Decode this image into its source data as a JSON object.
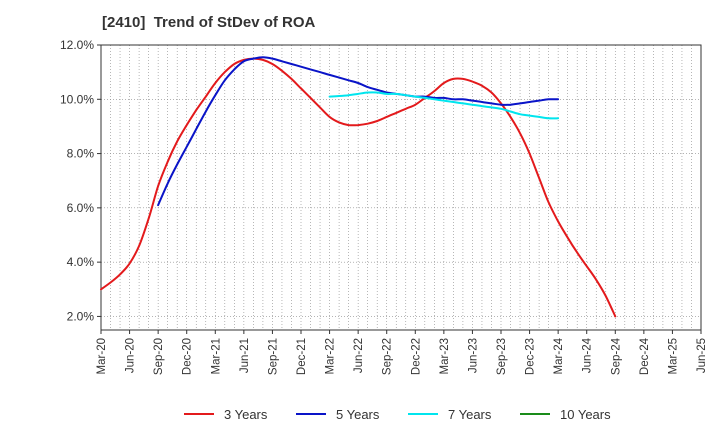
{
  "chart_data": {
    "type": "line",
    "title": "[2410]  Trend of StDev of ROA",
    "xlabel": "",
    "ylabel": "",
    "ylim": [
      1.5,
      12.0
    ],
    "y_ticks": [
      "2.0%",
      "4.0%",
      "6.0%",
      "8.0%",
      "10.0%",
      "12.0%"
    ],
    "y_tick_values": [
      2,
      4,
      6,
      8,
      10,
      12
    ],
    "x_ticks": [
      "Mar-20",
      "Jun-20",
      "Sep-20",
      "Dec-20",
      "Mar-21",
      "Jun-21",
      "Sep-21",
      "Dec-21",
      "Mar-22",
      "Jun-22",
      "Sep-22",
      "Dec-22",
      "Mar-23",
      "Jun-23",
      "Sep-23",
      "Dec-23",
      "Mar-24",
      "Jun-24",
      "Sep-24",
      "Dec-24",
      "Mar-25",
      "Jun-25"
    ],
    "grid": true,
    "legend_position": "bottom",
    "series": [
      {
        "name": "3 Years",
        "color": "#e31a1c",
        "points": [
          [
            "Mar-20",
            3.0
          ],
          [
            "Apr-20",
            3.25
          ],
          [
            "May-20",
            3.55
          ],
          [
            "Jun-20",
            3.95
          ],
          [
            "Jul-20",
            4.6
          ],
          [
            "Aug-20",
            5.6
          ],
          [
            "Sep-20",
            6.8
          ],
          [
            "Oct-20",
            7.7
          ],
          [
            "Nov-20",
            8.45
          ],
          [
            "Dec-20",
            9.05
          ],
          [
            "Jan-21",
            9.6
          ],
          [
            "Feb-21",
            10.1
          ],
          [
            "Mar-21",
            10.6
          ],
          [
            "Apr-21",
            11.0
          ],
          [
            "May-21",
            11.3
          ],
          [
            "Jun-21",
            11.45
          ],
          [
            "Jul-21",
            11.5
          ],
          [
            "Aug-21",
            11.45
          ],
          [
            "Sep-21",
            11.3
          ],
          [
            "Oct-21",
            11.05
          ],
          [
            "Nov-21",
            10.75
          ],
          [
            "Dec-21",
            10.4
          ],
          [
            "Jan-22",
            10.05
          ],
          [
            "Feb-22",
            9.7
          ],
          [
            "Mar-22",
            9.35
          ],
          [
            "Apr-22",
            9.15
          ],
          [
            "May-22",
            9.05
          ],
          [
            "Jun-22",
            9.05
          ],
          [
            "Jul-22",
            9.1
          ],
          [
            "Aug-22",
            9.2
          ],
          [
            "Sep-22",
            9.35
          ],
          [
            "Oct-22",
            9.5
          ],
          [
            "Nov-22",
            9.65
          ],
          [
            "Dec-22",
            9.8
          ],
          [
            "Jan-23",
            10.05
          ],
          [
            "Feb-23",
            10.3
          ],
          [
            "Mar-23",
            10.6
          ],
          [
            "Apr-23",
            10.75
          ],
          [
            "May-23",
            10.75
          ],
          [
            "Jun-23",
            10.65
          ],
          [
            "Jul-23",
            10.5
          ],
          [
            "Aug-23",
            10.25
          ],
          [
            "Sep-23",
            9.85
          ],
          [
            "Oct-23",
            9.35
          ],
          [
            "Nov-23",
            8.75
          ],
          [
            "Dec-23",
            8.0
          ],
          [
            "Jan-24",
            7.1
          ],
          [
            "Feb-24",
            6.2
          ],
          [
            "Mar-24",
            5.5
          ],
          [
            "Apr-24",
            4.9
          ],
          [
            "May-24",
            4.35
          ],
          [
            "Jun-24",
            3.85
          ],
          [
            "Jul-24",
            3.35
          ],
          [
            "Aug-24",
            2.75
          ],
          [
            "Sep-24",
            2.0
          ]
        ]
      },
      {
        "name": "5 Years",
        "color": "#0a14c8",
        "points": [
          [
            "Sep-20",
            6.1
          ],
          [
            "Oct-20",
            6.9
          ],
          [
            "Nov-20",
            7.6
          ],
          [
            "Dec-20",
            8.25
          ],
          [
            "Jan-21",
            8.9
          ],
          [
            "Feb-21",
            9.55
          ],
          [
            "Mar-21",
            10.15
          ],
          [
            "Apr-21",
            10.7
          ],
          [
            "May-21",
            11.1
          ],
          [
            "Jun-21",
            11.4
          ],
          [
            "Jul-21",
            11.5
          ],
          [
            "Aug-21",
            11.55
          ],
          [
            "Sep-21",
            11.5
          ],
          [
            "Oct-21",
            11.4
          ],
          [
            "Nov-21",
            11.3
          ],
          [
            "Dec-21",
            11.2
          ],
          [
            "Jan-22",
            11.1
          ],
          [
            "Feb-22",
            11.0
          ],
          [
            "Mar-22",
            10.9
          ],
          [
            "Apr-22",
            10.8
          ],
          [
            "May-22",
            10.7
          ],
          [
            "Jun-22",
            10.6
          ],
          [
            "Jul-22",
            10.45
          ],
          [
            "Aug-22",
            10.35
          ],
          [
            "Sep-22",
            10.25
          ],
          [
            "Oct-22",
            10.2
          ],
          [
            "Nov-22",
            10.15
          ],
          [
            "Dec-22",
            10.1
          ],
          [
            "Jan-23",
            10.1
          ],
          [
            "Feb-23",
            10.05
          ],
          [
            "Mar-23",
            10.05
          ],
          [
            "Apr-23",
            10.0
          ],
          [
            "May-23",
            10.0
          ],
          [
            "Jun-23",
            9.95
          ],
          [
            "Jul-23",
            9.9
          ],
          [
            "Aug-23",
            9.85
          ],
          [
            "Sep-23",
            9.8
          ],
          [
            "Oct-23",
            9.8
          ],
          [
            "Nov-23",
            9.85
          ],
          [
            "Dec-23",
            9.9
          ],
          [
            "Jan-24",
            9.95
          ],
          [
            "Feb-24",
            10.0
          ],
          [
            "Mar-24",
            10.0
          ]
        ]
      },
      {
        "name": "7 Years",
        "color": "#00e5ee",
        "points": [
          [
            "Mar-22",
            10.1
          ],
          [
            "Apr-22",
            10.12
          ],
          [
            "May-22",
            10.15
          ],
          [
            "Jun-22",
            10.2
          ],
          [
            "Jul-22",
            10.25
          ],
          [
            "Aug-22",
            10.25
          ],
          [
            "Sep-22",
            10.2
          ],
          [
            "Oct-22",
            10.2
          ],
          [
            "Nov-22",
            10.15
          ],
          [
            "Dec-22",
            10.1
          ],
          [
            "Jan-23",
            10.05
          ],
          [
            "Feb-23",
            10.0
          ],
          [
            "Mar-23",
            9.95
          ],
          [
            "Apr-23",
            9.9
          ],
          [
            "May-23",
            9.85
          ],
          [
            "Jun-23",
            9.8
          ],
          [
            "Jul-23",
            9.75
          ],
          [
            "Aug-23",
            9.7
          ],
          [
            "Sep-23",
            9.65
          ],
          [
            "Oct-23",
            9.55
          ],
          [
            "Nov-23",
            9.45
          ],
          [
            "Dec-23",
            9.4
          ],
          [
            "Jan-24",
            9.35
          ],
          [
            "Feb-24",
            9.3
          ],
          [
            "Mar-24",
            9.3
          ]
        ]
      },
      {
        "name": "10 Years",
        "color": "#1a8c1a",
        "points": []
      }
    ]
  }
}
